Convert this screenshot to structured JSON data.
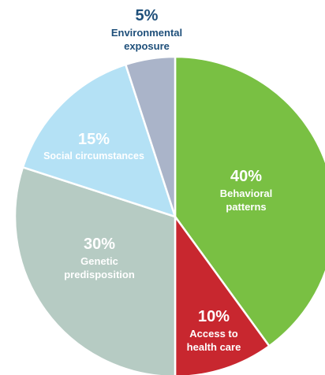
{
  "chart_data": {
    "type": "pie",
    "slices": [
      {
        "name": "behavioral-patterns",
        "value": 40,
        "value_label": "40%",
        "label_lines": [
          "Behavioral",
          "patterns"
        ],
        "color": "#79c043",
        "text_color": "#ffffff"
      },
      {
        "name": "access-to-health-care",
        "value": 10,
        "value_label": "10%",
        "label_lines": [
          "Access to",
          "health care"
        ],
        "color": "#c8272f",
        "text_color": "#ffffff"
      },
      {
        "name": "genetic-predisposition",
        "value": 30,
        "value_label": "30%",
        "label_lines": [
          "Genetic",
          "predisposition"
        ],
        "color": "#b6cbc3",
        "text_color": "#ffffff"
      },
      {
        "name": "social-circumstances",
        "value": 15,
        "value_label": "15%",
        "label_lines": [
          "Social circumstances"
        ],
        "color": "#b4e1f5",
        "text_color": "#ffffff"
      },
      {
        "name": "environmental-exposure",
        "value": 5,
        "value_label": "5%",
        "label_lines": [
          "Environmental",
          "exposure"
        ],
        "color": "#aab4c9",
        "text_color": "#1e4f7a",
        "label_outside": true
      }
    ]
  }
}
